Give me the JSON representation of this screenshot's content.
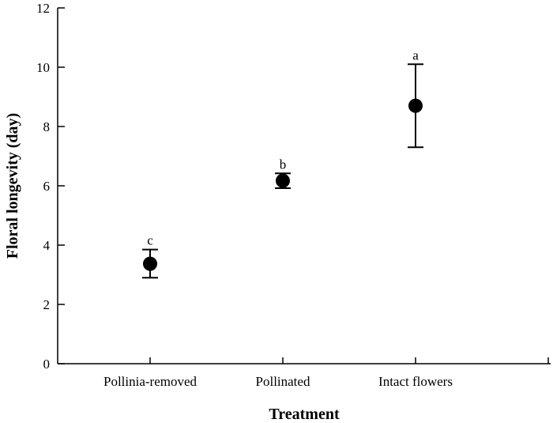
{
  "chart_data": {
    "type": "scatter",
    "title": "",
    "xlabel": "Treatment",
    "ylabel": "Floral longevity (day)",
    "ylim": [
      0,
      12
    ],
    "yticks": [
      0,
      2,
      4,
      6,
      8,
      10,
      12
    ],
    "categories": [
      "Pollinia-removed",
      "Pollinated",
      "Intact flowers"
    ],
    "values": [
      3.37,
      6.17,
      8.7
    ],
    "error_low": [
      2.9,
      5.92,
      7.3
    ],
    "error_high": [
      3.85,
      6.42,
      10.1
    ],
    "significance": [
      "c",
      "b",
      "a"
    ],
    "grid": false,
    "marker_color": "#000000"
  }
}
